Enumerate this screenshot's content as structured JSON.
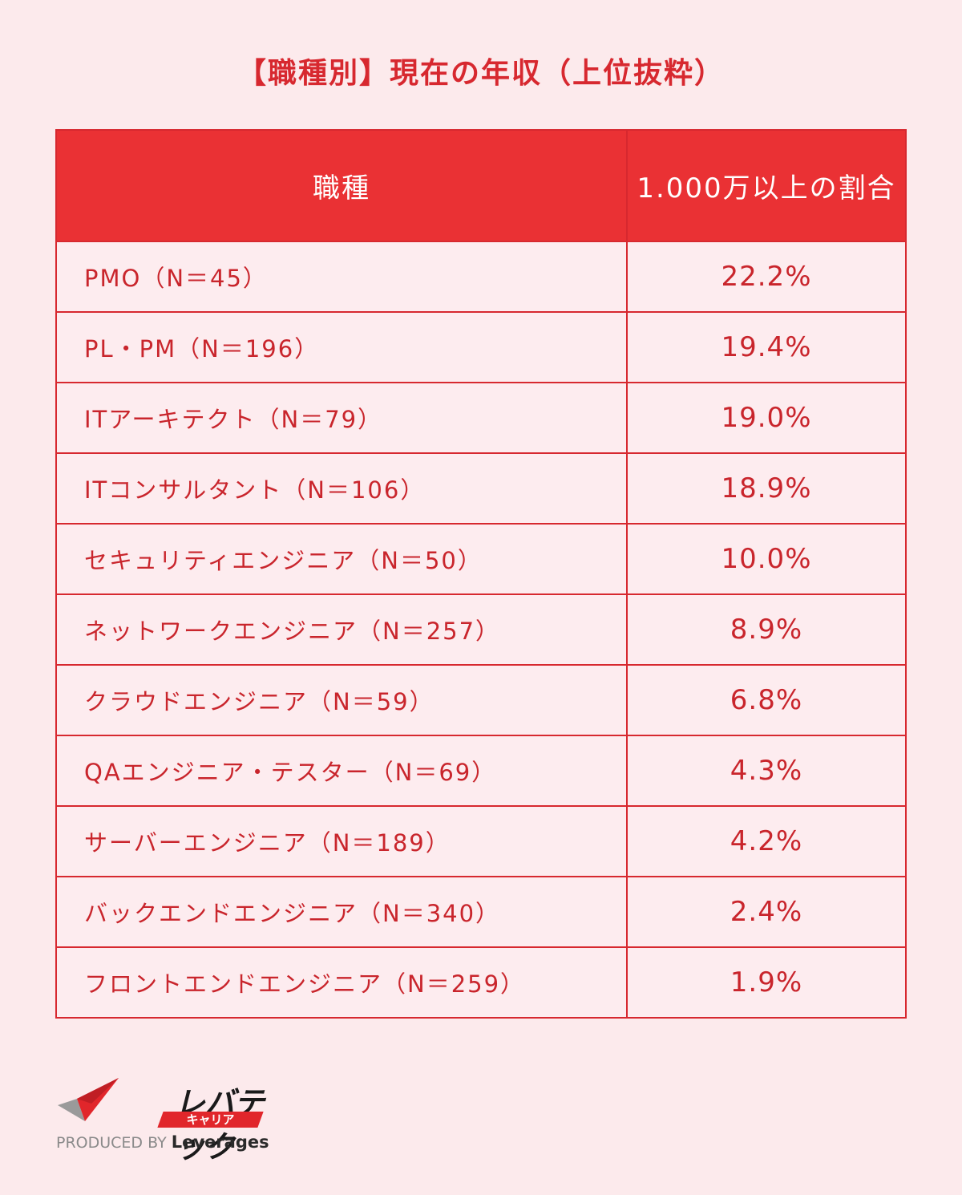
{
  "title": "【職種別】現在の年収（上位抜粋）",
  "chart_data": {
    "type": "table",
    "columns": [
      "職種",
      "1.000万以上の割合"
    ],
    "rows": [
      {
        "label": "PMO（N＝45）",
        "value": "22.2%"
      },
      {
        "label": "PL・PM（N＝196）",
        "value": "19.4%"
      },
      {
        "label": "ITアーキテクト（N＝79）",
        "value": "19.0%"
      },
      {
        "label": "ITコンサルタント（N＝106）",
        "value": "18.9%"
      },
      {
        "label": "セキュリティエンジニア（N＝50）",
        "value": "10.0%"
      },
      {
        "label": "ネットワークエンジニア（N＝257）",
        "value": "8.9%"
      },
      {
        "label": "クラウドエンジニア（N＝59）",
        "value": "6.8%"
      },
      {
        "label": "QAエンジニア・テスター（N＝69）",
        "value": "4.3%"
      },
      {
        "label": "サーバーエンジニア（N＝189）",
        "value": "4.2%"
      },
      {
        "label": "バックエンドエンジニア（N＝340）",
        "value": "2.4%"
      },
      {
        "label": "フロントエンドエンジニア（N＝259）",
        "value": "1.9%"
      }
    ]
  },
  "logo": {
    "name": "レバテック",
    "sub": "キャリア",
    "produced_by": "PRODUCED BY",
    "brand": "Leverages"
  },
  "colors": {
    "accent": "#d7282f",
    "header_bg": "#ea3134",
    "background": "#fceaec"
  }
}
